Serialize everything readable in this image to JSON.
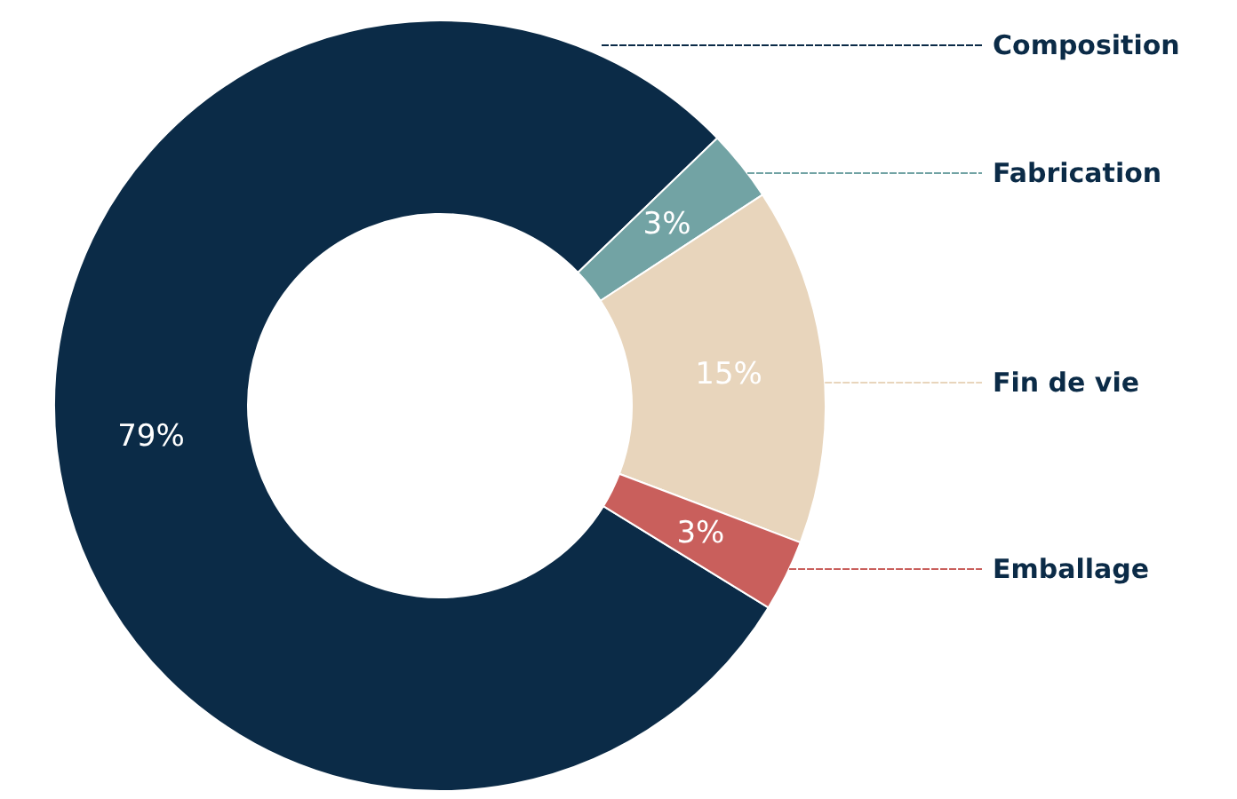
{
  "chart_data": {
    "type": "donut",
    "categories": [
      "Composition",
      "Fabrication",
      "Fin de vie",
      "Emballage"
    ],
    "values": [
      79,
      3,
      15,
      3
    ],
    "colors": [
      "#0b2b47",
      "#72a3a4",
      "#e8d5bc",
      "#c95f5c"
    ],
    "value_labels": [
      "79%",
      "3%",
      "15%",
      "3%"
    ]
  }
}
